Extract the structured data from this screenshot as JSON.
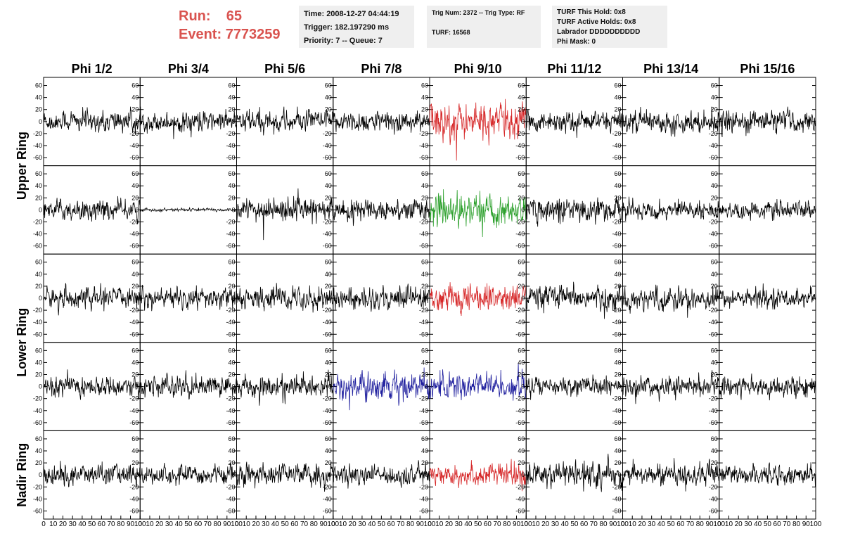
{
  "header": {
    "run_label": "Run:",
    "run_value": "65",
    "event_label": "Event:",
    "event_value": "7773259",
    "time": "Time: 2008-12-27 04:44:19",
    "trigger": "Trigger: 182.197290 ms",
    "priority": "Priority: 7 -- Queue: 7",
    "trig_num": "Trig Num: 2372 -- Trig Type: RF",
    "turf": "TURF: 16568",
    "turf_this_hold": "TURF This Hold: 0x8",
    "turf_active_holds": "TURF Active Holds: 0x8",
    "labrador": "Labrador DDDDDDDDDD",
    "phi_mask": "Phi Mask: 0"
  },
  "chart_data": {
    "type": "line",
    "columns": [
      "Phi 1/2",
      "Phi 3/4",
      "Phi 5/6",
      "Phi 7/8",
      "Phi 9/10",
      "Phi 11/12",
      "Phi 13/14",
      "Phi 15/16"
    ],
    "ring_labels": [
      "Upper Ring",
      "Lower Ring",
      "Nadir Ring"
    ],
    "ring_row_span": [
      2,
      2,
      1
    ],
    "rows": 5,
    "ylim": [
      -70,
      70
    ],
    "yticks": [
      -60,
      -40,
      -20,
      0,
      20,
      40,
      60
    ],
    "xlim": [
      0,
      100
    ],
    "xticks": [
      0,
      10,
      20,
      30,
      40,
      50,
      60,
      70,
      80,
      90,
      100
    ],
    "x_tick_labels": [
      "0",
      "10",
      "20",
      "30",
      "40",
      "50",
      "60",
      "70",
      "80",
      "90",
      "100"
    ],
    "colors": {
      "default": "#000000",
      "red": "#d62728",
      "green": "#2ca02c",
      "blue": "#1f1f9e"
    },
    "panels": [
      [
        {
          "color": "default",
          "amp": 13
        },
        {
          "color": "default",
          "amp": 12
        },
        {
          "color": "default",
          "amp": 13
        },
        {
          "color": "default",
          "amp": 12
        },
        {
          "color": "red",
          "amp": 22,
          "spike": -65
        },
        {
          "color": "default",
          "amp": 12
        },
        {
          "color": "default",
          "amp": 13
        },
        {
          "color": "default",
          "amp": 13
        }
      ],
      [
        {
          "color": "default",
          "amp": 12
        },
        {
          "color": "default",
          "amp": 2
        },
        {
          "color": "default",
          "amp": 13,
          "spike": -50
        },
        {
          "color": "default",
          "amp": 13
        },
        {
          "color": "green",
          "amp": 18
        },
        {
          "color": "default",
          "amp": 14
        },
        {
          "color": "default",
          "amp": 11
        },
        {
          "color": "default",
          "amp": 10
        }
      ],
      [
        {
          "color": "default",
          "amp": 12
        },
        {
          "color": "default",
          "amp": 12
        },
        {
          "color": "default",
          "amp": 13
        },
        {
          "color": "default",
          "amp": 14
        },
        {
          "color": "red",
          "amp": 16
        },
        {
          "color": "default",
          "amp": 14
        },
        {
          "color": "default",
          "amp": 13
        },
        {
          "color": "default",
          "amp": 11
        }
      ],
      [
        {
          "color": "default",
          "amp": 12
        },
        {
          "color": "default",
          "amp": 13
        },
        {
          "color": "default",
          "amp": 14
        },
        {
          "color": "blue",
          "amp": 17
        },
        {
          "color": "blue",
          "amp": 16
        },
        {
          "color": "default",
          "amp": 11
        },
        {
          "color": "default",
          "amp": 12
        },
        {
          "color": "default",
          "amp": 12
        }
      ],
      [
        {
          "color": "default",
          "amp": 13
        },
        {
          "color": "default",
          "amp": 11
        },
        {
          "color": "default",
          "amp": 13
        },
        {
          "color": "default",
          "amp": 12
        },
        {
          "color": "red",
          "amp": 13
        },
        {
          "color": "default",
          "amp": 15
        },
        {
          "color": "default",
          "amp": 13
        },
        {
          "color": "default",
          "amp": 12
        }
      ]
    ]
  }
}
